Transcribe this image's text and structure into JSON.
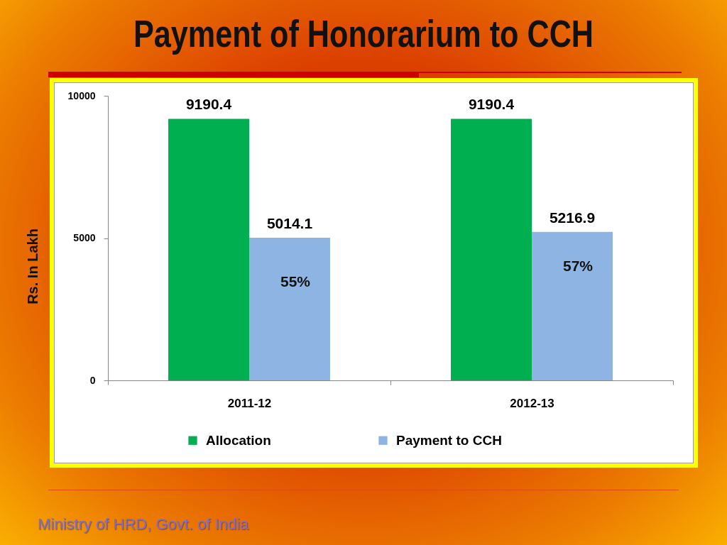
{
  "chart_data": {
    "type": "bar",
    "title": "Payment of Honorarium to CCH",
    "ylabel": "Rs. In Lakh",
    "categories": [
      "2011-12",
      "2012-13"
    ],
    "series": [
      {
        "name": "Allocation",
        "color": "#00b050",
        "values": [
          9190.4,
          9190.4
        ]
      },
      {
        "name": "Payment to CCH",
        "color": "#8eb4e3",
        "values": [
          5014.1,
          5216.9
        ]
      }
    ],
    "ylim": [
      0,
      10000
    ],
    "yticks": [
      0,
      5000,
      10000
    ],
    "legend": "bottom",
    "data_labels": true,
    "annotations": [
      {
        "text": "55%",
        "x": "2011-12",
        "y": 3450
      },
      {
        "text": "57%",
        "x": "2012-13",
        "y": 4000
      },
      "Ministry of HRD, Govt. of India"
    ]
  }
}
